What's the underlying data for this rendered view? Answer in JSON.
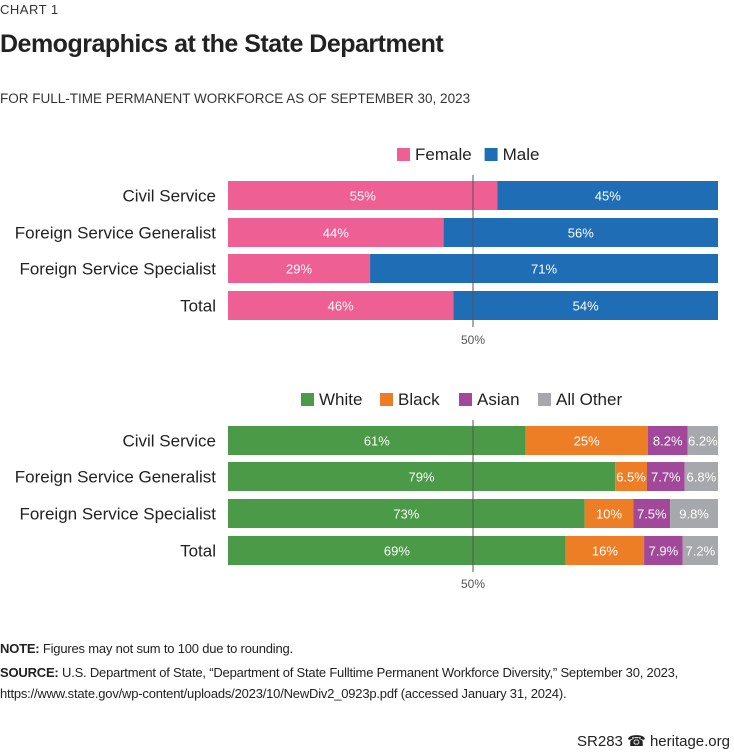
{
  "header": {
    "label": "CHART 1",
    "title": "Demographics at the State Department",
    "subtitle": "FOR FULL-TIME PERMANENT WORKFORCE AS OF SEPTEMBER 30, 2023"
  },
  "chart_data": [
    {
      "type": "bar",
      "orientation": "horizontal",
      "stacked": true,
      "categories": [
        "Civil Service",
        "Foreign Service Generalist",
        "Foreign Service Specialist",
        "Total"
      ],
      "series": [
        {
          "name": "Female",
          "color": "#EE5F93",
          "values": [
            55,
            44,
            29,
            46
          ],
          "labels": [
            "55%",
            "44%",
            "29%",
            "46%"
          ]
        },
        {
          "name": "Male",
          "color": "#1F6DB5",
          "values": [
            45,
            56,
            71,
            54
          ],
          "labels": [
            "45%",
            "56%",
            "71%",
            "54%"
          ]
        }
      ],
      "reference_line": {
        "value": 50,
        "label": "50%"
      },
      "legend": "top",
      "xlim": [
        0,
        100
      ]
    },
    {
      "type": "bar",
      "orientation": "horizontal",
      "stacked": true,
      "categories": [
        "Civil Service",
        "Foreign Service Generalist",
        "Foreign Service Specialist",
        "Total"
      ],
      "series": [
        {
          "name": "White",
          "color": "#4A9A47",
          "values": [
            61,
            79,
            73,
            69
          ],
          "labels": [
            "61%",
            "79%",
            "73%",
            "69%"
          ]
        },
        {
          "name": "Black",
          "color": "#EE7E26",
          "values": [
            25,
            6.5,
            10,
            16
          ],
          "labels": [
            "25%",
            "6.5%",
            "10%",
            "16%"
          ]
        },
        {
          "name": "Asian",
          "color": "#A1489B",
          "values": [
            8.2,
            7.7,
            7.5,
            7.9
          ],
          "labels": [
            "8.2%",
            "7.7%",
            "7.5%",
            "7.9%"
          ]
        },
        {
          "name": "All Other",
          "color": "#A7A8AB",
          "values": [
            6.2,
            6.8,
            9.8,
            7.2
          ],
          "labels": [
            "6.2%",
            "6.8%",
            "9.8%",
            "7.2%"
          ]
        }
      ],
      "reference_line": {
        "value": 50,
        "label": "50%"
      },
      "legend": "top",
      "xlim": [
        0,
        100
      ]
    }
  ],
  "notes": {
    "note_label": "NOTE:",
    "note": " Figures may not sum to 100 due to rounding.",
    "source_label": "SOURCE:",
    "source": " U.S. Department of State, “Department of State Fulltime Permanent Workforce Diversity,” September 30, 2023, https://www.state.gov/wp-content/uploads/2023/10/NewDiv2_0923p.pdf (accessed January 31, 2024)."
  },
  "footer": {
    "code": "SR283",
    "site": "heritage.org",
    "icon": "liberty-bell-icon"
  }
}
